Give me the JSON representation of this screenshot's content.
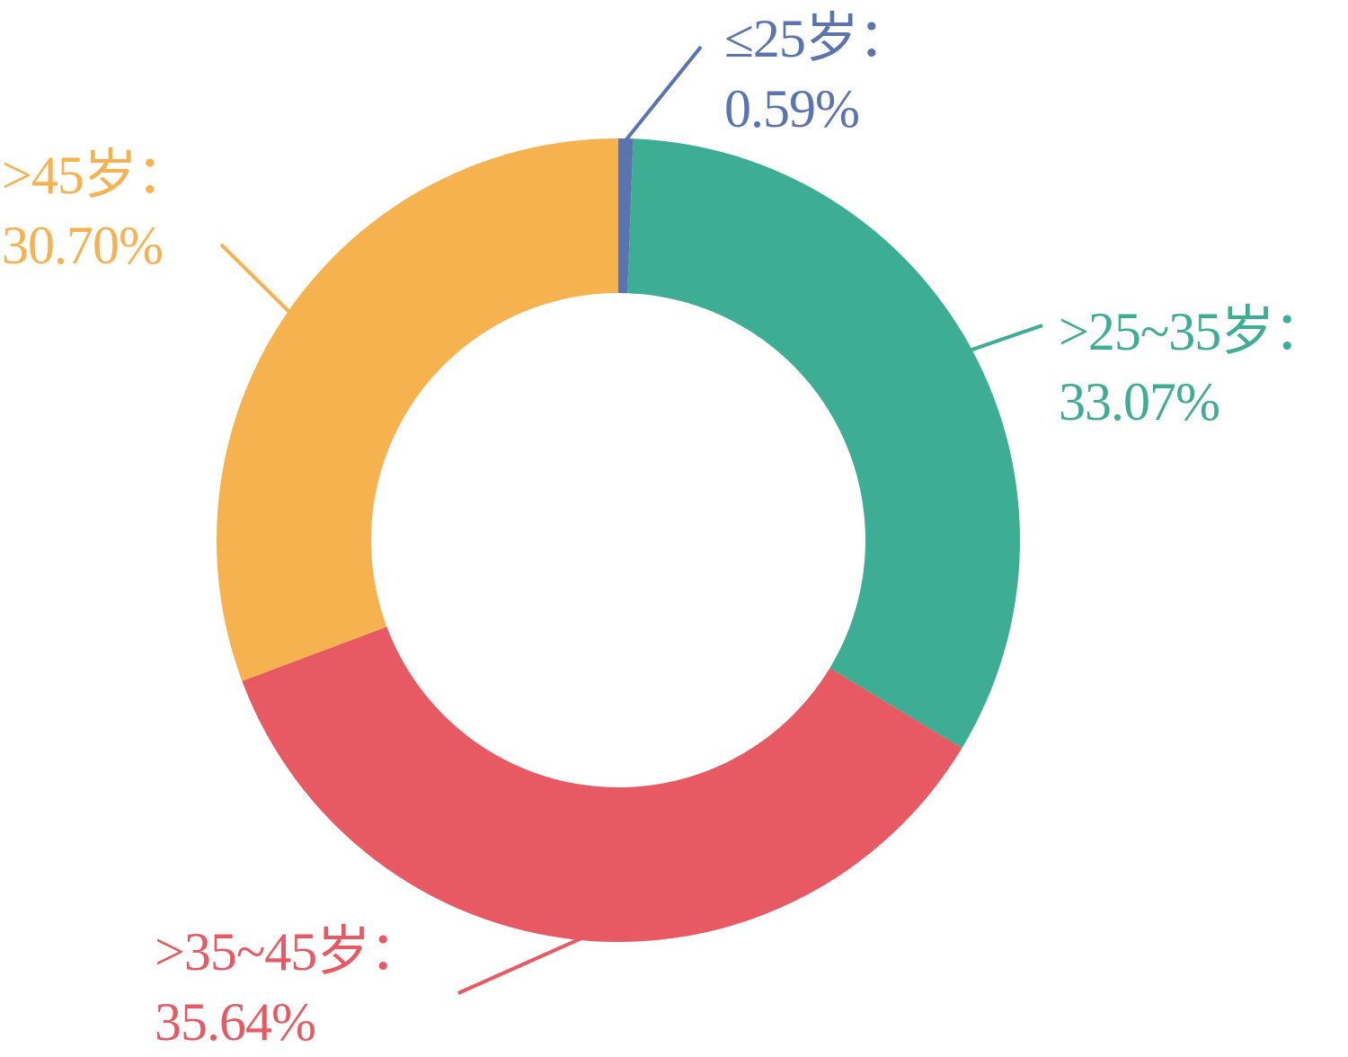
{
  "chart_data": {
    "type": "pie",
    "variant": "donut",
    "slices": [
      {
        "name": "≤25岁",
        "label": "≤25岁：",
        "value": 0.59,
        "value_label": "0.59%",
        "color": "#5B74B0"
      },
      {
        "name": ">25~35岁",
        "label": ">25~35岁：",
        "value": 33.07,
        "value_label": "33.07%",
        "color": "#3DAE93"
      },
      {
        "name": ">35~45岁",
        "label": ">35~45岁：",
        "value": 35.64,
        "value_label": "35.64%",
        "color": "#E85A63"
      },
      {
        "name": ">45岁",
        "label": ">45岁：",
        "value": 30.7,
        "value_label": "30.70%",
        "color": "#F5B24E"
      }
    ],
    "start_angle": "12 o'clock",
    "direction": "clockwise",
    "legend": "none",
    "title": ""
  }
}
